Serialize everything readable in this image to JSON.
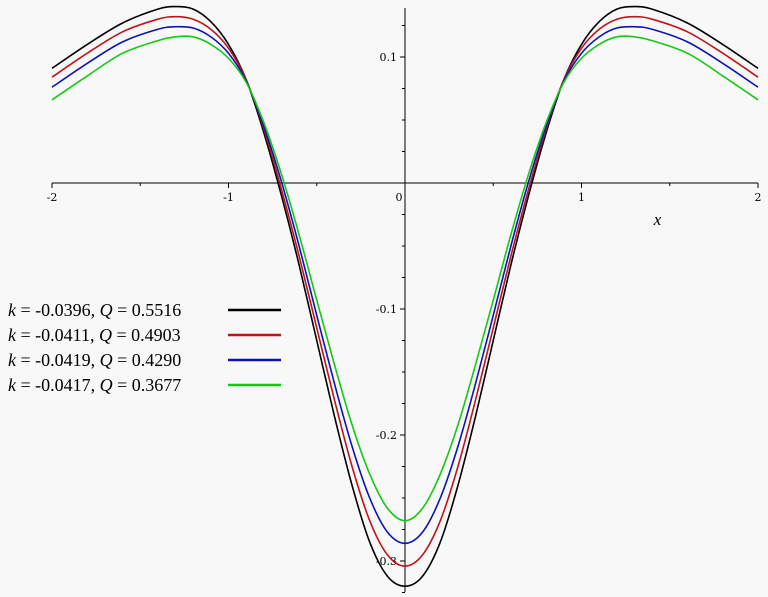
{
  "chart_data": {
    "type": "line",
    "title": "",
    "xlabel": "x",
    "ylabel": "",
    "xlim": [
      -2,
      2
    ],
    "ylim": [
      -0.32,
      0.14
    ],
    "grid": false,
    "legend_placement": "left",
    "x_ticks": [
      {
        "value": -2,
        "label": "-2"
      },
      {
        "value": -1,
        "label": "-1"
      },
      {
        "value": 0,
        "label": "0"
      },
      {
        "value": 1,
        "label": "1"
      },
      {
        "value": 2,
        "label": "2"
      }
    ],
    "y_ticks": [
      {
        "value": 0.1,
        "label": "0.1"
      },
      {
        "value": -0.1,
        "label": "-0.1"
      },
      {
        "value": -0.2,
        "label": "-0.2"
      },
      {
        "value": -0.3,
        "label": "-0.3"
      }
    ],
    "x": [
      -2,
      -1.8,
      -1.6,
      -1.4,
      -1.3,
      -1.2,
      -1.1,
      -1.0,
      -0.9,
      -0.8,
      -0.7,
      -0.6,
      -0.5,
      -0.4,
      -0.3,
      -0.2,
      -0.1,
      0,
      0.1,
      0.2,
      0.3,
      0.4,
      0.5,
      0.6,
      0.7,
      0.8,
      0.9,
      1.0,
      1.1,
      1.2,
      1.3,
      1.4,
      1.6,
      1.8,
      2
    ],
    "series": [
      {
        "legend_k": "-0.0396",
        "legend_Q": "0.5516",
        "color": "#000000",
        "values": [
          0.091,
          0.11,
          0.127,
          0.138,
          0.14,
          0.138,
          0.128,
          0.11,
          0.082,
          0.04,
          -0.01,
          -0.065,
          -0.125,
          -0.185,
          -0.24,
          -0.285,
          -0.312,
          -0.32,
          -0.312,
          -0.285,
          -0.24,
          -0.185,
          -0.125,
          -0.065,
          -0.01,
          0.04,
          0.082,
          0.11,
          0.128,
          0.138,
          0.14,
          0.138,
          0.127,
          0.11,
          0.091
        ]
      },
      {
        "legend_k": "-0.0411",
        "legend_Q": "0.4903",
        "color": "#c0141a",
        "values": [
          0.084,
          0.103,
          0.12,
          0.13,
          0.132,
          0.13,
          0.122,
          0.107,
          0.082,
          0.043,
          -0.005,
          -0.058,
          -0.115,
          -0.172,
          -0.225,
          -0.268,
          -0.295,
          -0.304,
          -0.295,
          -0.268,
          -0.225,
          -0.172,
          -0.115,
          -0.058,
          -0.005,
          0.043,
          0.082,
          0.107,
          0.122,
          0.13,
          0.132,
          0.13,
          0.12,
          0.103,
          0.084
        ]
      },
      {
        "legend_k": "-0.0419",
        "legend_Q": "0.4290",
        "color": "#0a14b4",
        "values": [
          0.076,
          0.095,
          0.112,
          0.122,
          0.124,
          0.123,
          0.116,
          0.103,
          0.081,
          0.045,
          0.001,
          -0.05,
          -0.105,
          -0.159,
          -0.209,
          -0.25,
          -0.277,
          -0.286,
          -0.277,
          -0.25,
          -0.209,
          -0.159,
          -0.105,
          -0.05,
          0.001,
          0.045,
          0.081,
          0.103,
          0.116,
          0.123,
          0.124,
          0.122,
          0.112,
          0.095,
          0.076
        ]
      },
      {
        "legend_k": "-0.0417",
        "legend_Q": "0.3677",
        "color": "#14c814",
        "values": [
          0.066,
          0.085,
          0.103,
          0.113,
          0.116,
          0.116,
          0.11,
          0.099,
          0.08,
          0.048,
          0.007,
          -0.041,
          -0.093,
          -0.144,
          -0.192,
          -0.231,
          -0.258,
          -0.268,
          -0.258,
          -0.231,
          -0.192,
          -0.144,
          -0.093,
          -0.041,
          0.007,
          0.048,
          0.08,
          0.099,
          0.11,
          0.116,
          0.116,
          0.113,
          0.103,
          0.085,
          0.066
        ]
      }
    ]
  }
}
